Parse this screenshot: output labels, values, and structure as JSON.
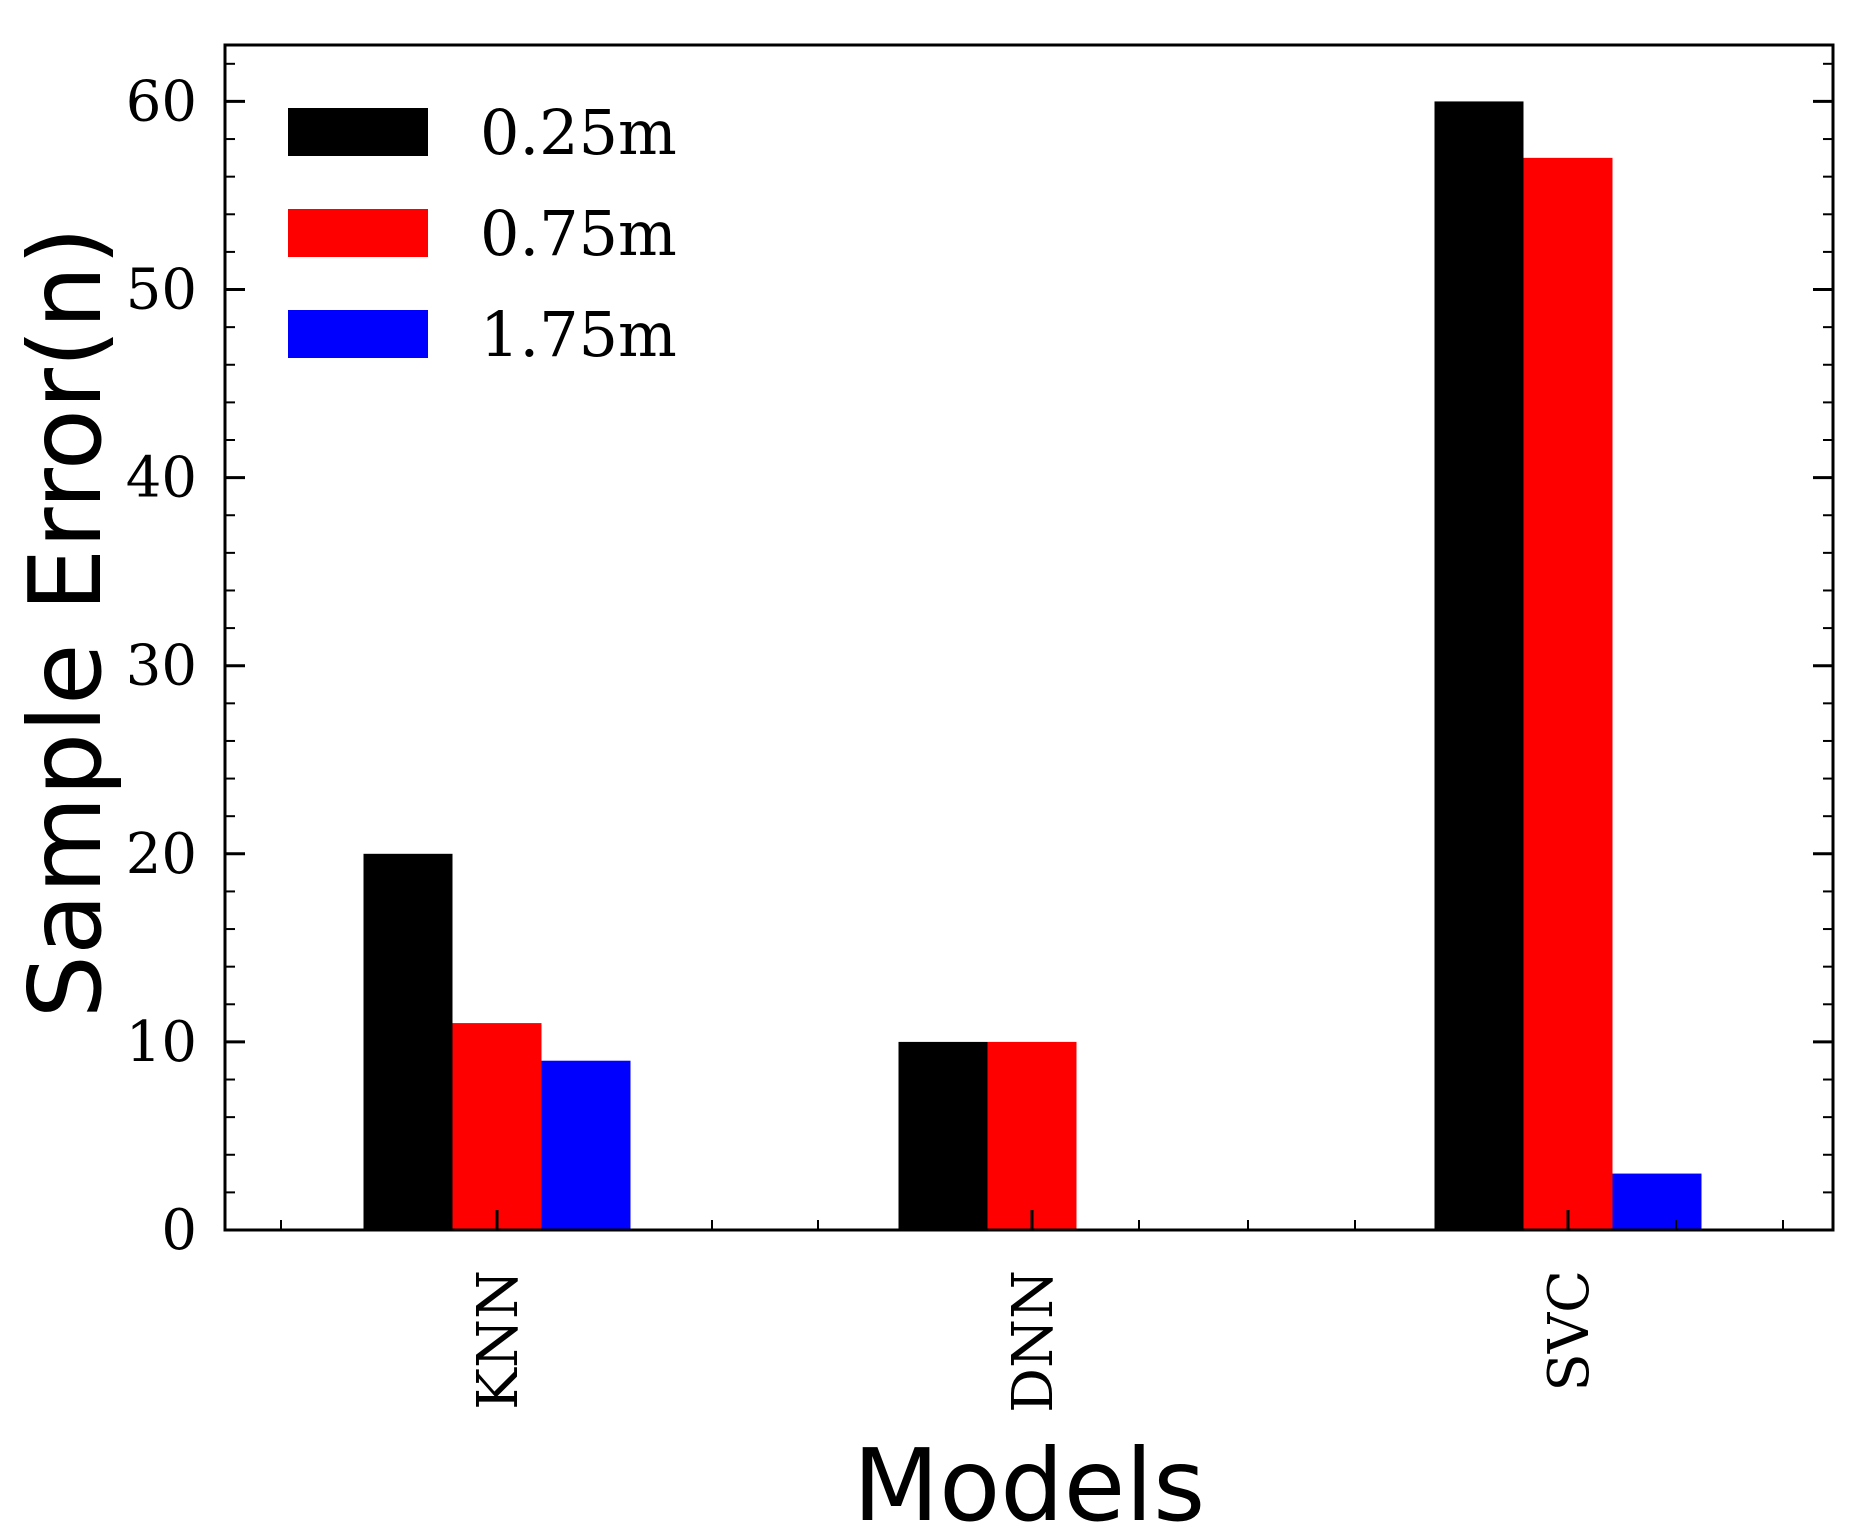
{
  "chart_data": {
    "type": "bar",
    "title": "",
    "xlabel": "Models",
    "ylabel": "Sample Error(n)",
    "categories": [
      "KNN",
      "DNN",
      "SVC"
    ],
    "series": [
      {
        "name": "0.25m",
        "color": "#000000",
        "values": [
          20,
          10,
          60
        ]
      },
      {
        "name": "0.75m",
        "color": "#ff0000",
        "values": [
          11,
          10,
          57
        ]
      },
      {
        "name": "1.75m",
        "color": "#0000ff",
        "values": [
          9,
          0,
          3
        ]
      }
    ],
    "ylim": [
      0,
      63
    ],
    "yticks": [
      0,
      10,
      20,
      30,
      40,
      50,
      60
    ],
    "legend_position": "top-left",
    "grid": false
  }
}
